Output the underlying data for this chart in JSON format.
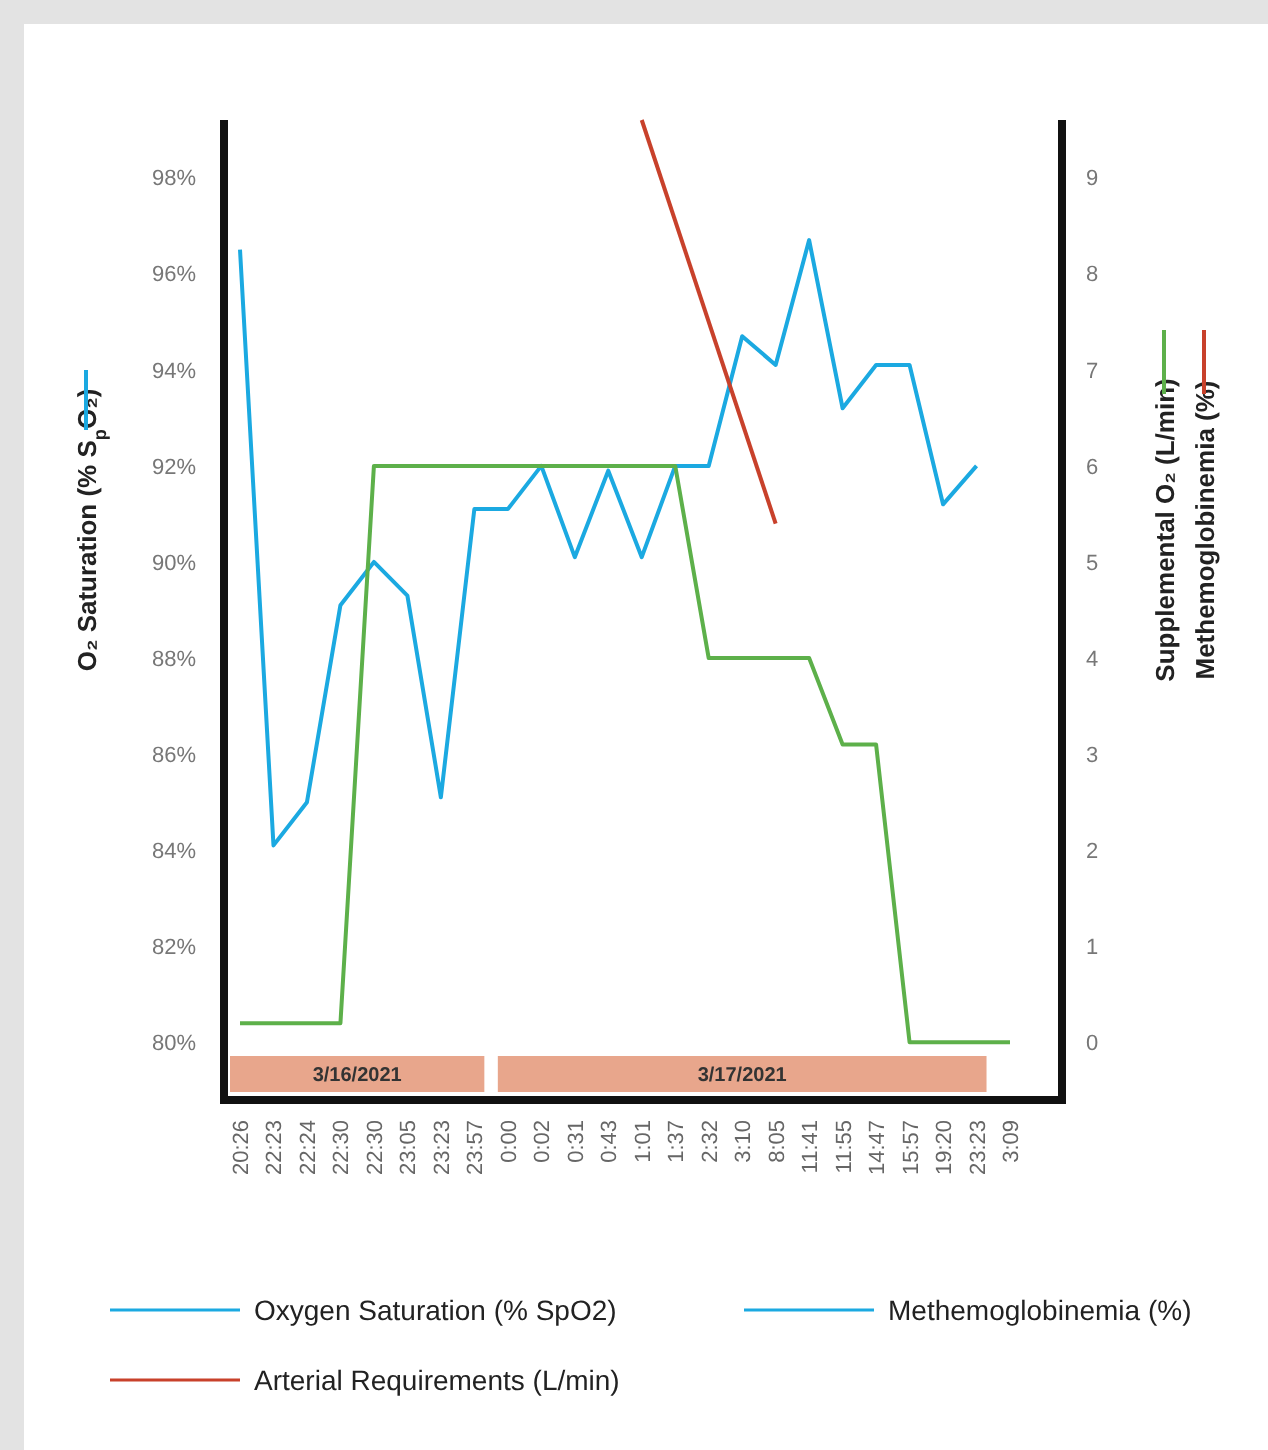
{
  "chart_data": {
    "type": "line",
    "categories": [
      "20:26",
      "22:23",
      "22:24",
      "22:30",
      "22:30",
      "23:05",
      "23:23",
      "23:57",
      "0:00",
      "0:02",
      "0:31",
      "0:43",
      "1:01",
      "1:37",
      "2:32",
      "3:10",
      "8:05",
      "11:41",
      "11:55",
      "14:47",
      "15:57",
      "19:20",
      "23:23",
      "3:09"
    ],
    "series": [
      {
        "name": "Oxygen Saturation (% SpO2)",
        "color": "#1ba9e1",
        "values": [
          96.5,
          84.1,
          85.0,
          89.1,
          90.0,
          89.3,
          85.1,
          91.1,
          91.1,
          92.0,
          90.1,
          91.9,
          90.1,
          92.0,
          92.0,
          94.7,
          94.1,
          96.7,
          93.2,
          94.1,
          94.1,
          91.2,
          92.0,
          null
        ]
      },
      {
        "color": "#5db04a",
        "axis": "y2",
        "values": [
          0.2,
          0.2,
          0.2,
          0.2,
          6,
          6,
          6,
          6,
          6,
          6,
          6,
          6,
          6,
          6,
          4,
          4,
          4,
          4,
          3.1,
          3.1,
          0,
          0,
          0,
          0
        ]
      },
      {
        "name": "Arterial Requirements (L/min)",
        "color": "#c8412b",
        "axis": "y2",
        "values": [
          null,
          null,
          null,
          null,
          null,
          null,
          null,
          null,
          null,
          null,
          null,
          null,
          9.6,
          null,
          null,
          null,
          5.4,
          null,
          null,
          null,
          null,
          null,
          null,
          null
        ]
      }
    ],
    "ylabel": "O₂ Saturation (% S$_{p}$O₂)",
    "y2label": "Supplemental O₂ (L/min)\nMethemoglobinemia (%)",
    "ylim": [
      78.8,
      99.2
    ],
    "yticks": [
      {
        "value": 80,
        "label": "80%"
      },
      {
        "value": 82,
        "label": "82%"
      },
      {
        "value": 84,
        "label": "84%"
      },
      {
        "value": 86,
        "label": "86%"
      },
      {
        "value": 88,
        "label": "88%"
      },
      {
        "value": 90,
        "label": "90%"
      },
      {
        "value": 92,
        "label": "92%"
      },
      {
        "value": 94,
        "label": "94%"
      },
      {
        "value": 96,
        "label": "96%"
      },
      {
        "value": 98,
        "label": "98%"
      }
    ],
    "y2lim": [
      -0.6,
      9.6
    ],
    "y2ticks": [
      0,
      1,
      2,
      3,
      4,
      5,
      6,
      7,
      8,
      9
    ],
    "annotations": [
      "3/16/2021",
      "3/17/2021",
      "Methemoglobinemia (%)"
    ],
    "legend": "bottom",
    "grid": false
  }
}
